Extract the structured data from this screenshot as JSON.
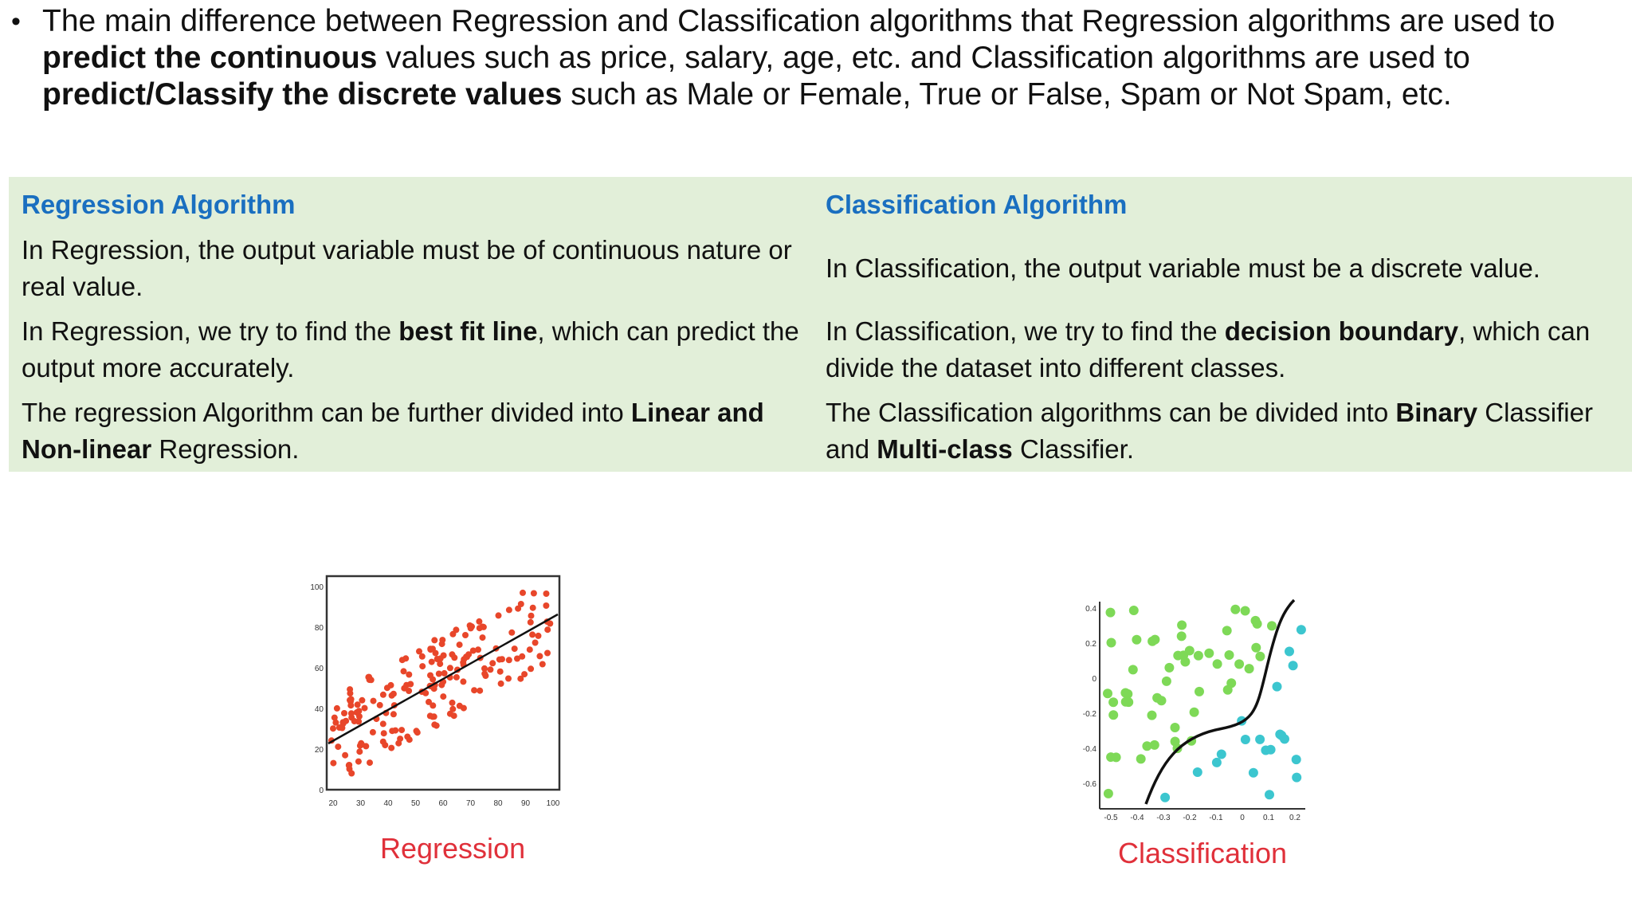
{
  "bullet": {
    "line1_a": "The main difference between Regression and Classification algorithms that Regression algorithms are used to",
    "line2_bold": "predict the continuous",
    "line2_rest": " values such as price, salary, age, etc. and Classification algorithms are used to",
    "line3_bold": "predict/Classify the discrete values",
    "line3_rest": " such as Male or Female, True or False, Spam or Not Spam, etc."
  },
  "table": {
    "head_left": "Regression Algorithm",
    "head_right": "Classification Algorithm",
    "row1_left": "In Regression, the output variable must be of continuous nature or real value.",
    "row1_right": "In Classification, the output variable must be a discrete value.",
    "row2_left_a": "In Regression, we try to find the ",
    "row2_left_b": "best fit line",
    "row2_left_c": ", which can predict the output more accurately.",
    "row2_right_a": "In Classification, we try to find the ",
    "row2_right_b": "decision boundary",
    "row2_right_c": ", which can divide the dataset into different classes.",
    "row3_left_a": "The regression Algorithm can be further divided into ",
    "row3_left_b": "Linear and Non-linear",
    "row3_left_c": " Regression.",
    "row3_right_a": "The Classification algorithms can be divided into ",
    "row3_right_b": "Binary",
    "row3_right_c": " Classifier and ",
    "row3_right_d": "Multi-class",
    "row3_right_e": " Classifier."
  },
  "figures": {
    "regression_label": "Regression",
    "classification_label": "Classification",
    "regression_x_ticks": [
      "20",
      "30",
      "40",
      "50",
      "60",
      "70",
      "80",
      "90",
      "100"
    ],
    "regression_y_ticks": [
      "0",
      "20",
      "40",
      "60",
      "80",
      "100"
    ],
    "classification_x_ticks": [
      "-0.5",
      "-0.4",
      "-0.3",
      "-0.2",
      "-0.1",
      "0",
      "0.1",
      "0.2"
    ],
    "classification_y_ticks": [
      "0.4",
      "0.2",
      "0",
      "-0.2",
      "-0.4",
      "-0.6"
    ],
    "colors": {
      "regression_points": "#e8462a",
      "class_a": "#7ed957",
      "class_b": "#3cc6cf",
      "header_blue": "#1a6fc0",
      "table_bg": "#e2efd9",
      "label_red": "#e0303a"
    }
  }
}
